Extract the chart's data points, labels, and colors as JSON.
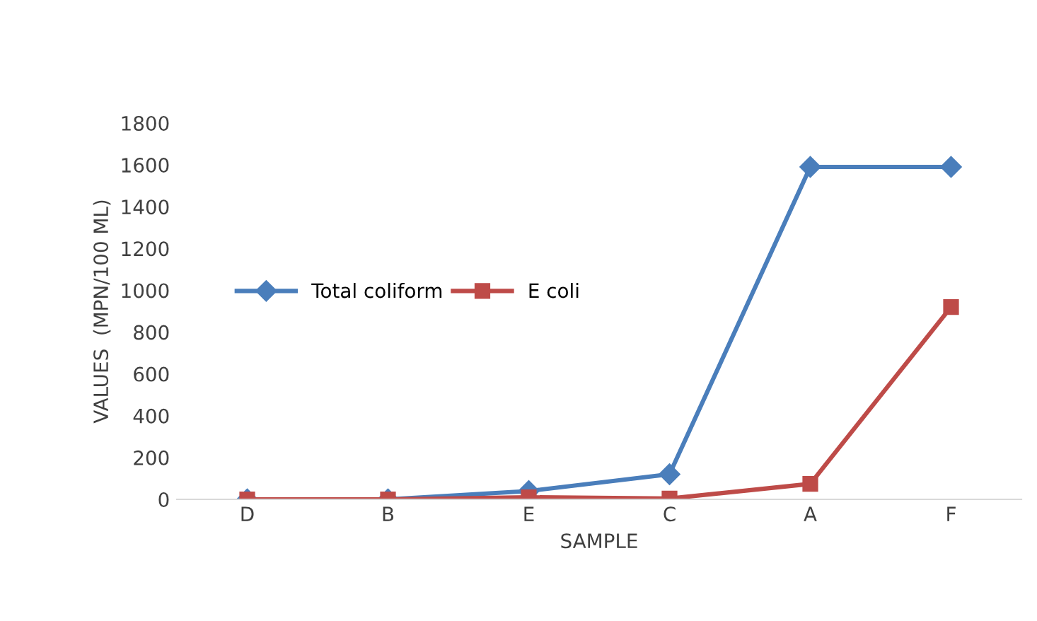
{
  "chart_data": {
    "type": "line",
    "xlabel": "SAMPLE",
    "ylabel": "VALUES  (MPN/100 ML)",
    "categories": [
      "D",
      "B",
      "E",
      "C",
      "A",
      "F"
    ],
    "series": [
      {
        "name": "Total coliform",
        "color": "#4a7ebb",
        "marker": "diamond",
        "values": [
          0,
          0,
          40,
          120,
          1590,
          1590
        ]
      },
      {
        "name": "E coli",
        "color": "#be4b48",
        "marker": "square",
        "values": [
          0,
          0,
          10,
          4,
          74,
          920
        ]
      }
    ],
    "ylim": [
      0,
      1800
    ],
    "yticks": [
      0,
      200,
      400,
      600,
      800,
      1000,
      1200,
      1400,
      1600,
      1800
    ],
    "grid": false,
    "legend": "left"
  }
}
